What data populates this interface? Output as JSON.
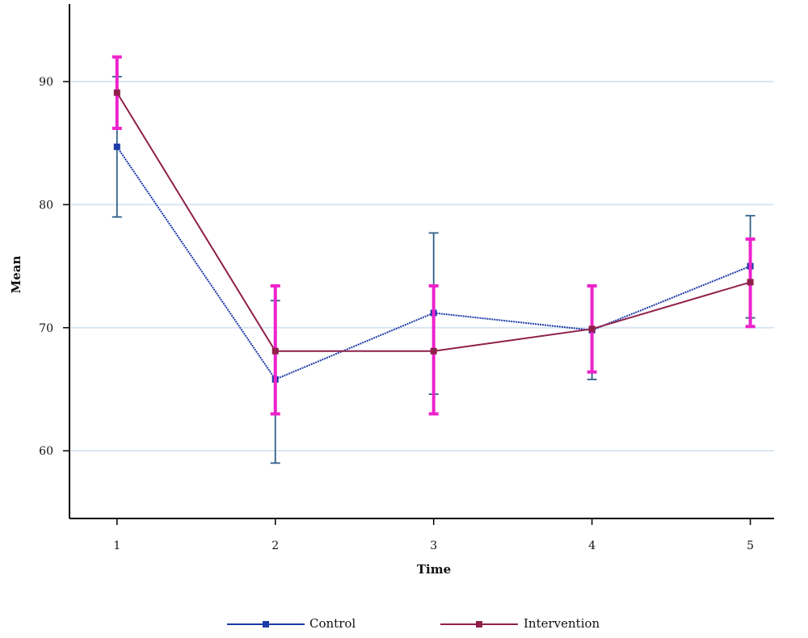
{
  "chart_data": {
    "type": "line",
    "title": "",
    "xlabel": "Time",
    "ylabel": "Mean",
    "x": [
      1,
      2,
      3,
      4,
      5
    ],
    "x_tick_labels": [
      "1",
      "2",
      "3",
      "4",
      "5"
    ],
    "y_ticks": [
      60,
      70,
      80,
      90
    ],
    "y_tick_labels": [
      "60",
      "70",
      "80",
      "90"
    ],
    "xlim": [
      0.7,
      5.15
    ],
    "ylim": [
      54.5,
      96.3
    ],
    "grid": "horizontal",
    "legend_position": "bottom",
    "series": [
      {
        "name": "Control",
        "color": "#1c3aa8",
        "errorbar_color": "#2f5f8a",
        "marker": "square",
        "values": [
          84.7,
          65.8,
          71.2,
          69.8,
          75.0
        ],
        "lower": [
          79.0,
          59.0,
          64.6,
          65.8,
          70.8
        ],
        "upper": [
          90.4,
          72.2,
          77.7,
          73.4,
          79.1
        ]
      },
      {
        "name": "Intervention",
        "color": "#8f1f4a",
        "errorbar_color": "#ee22cc",
        "marker": "square",
        "values": [
          89.1,
          68.1,
          68.1,
          69.9,
          73.7
        ],
        "lower": [
          86.2,
          63.0,
          63.0,
          66.4,
          70.1
        ],
        "upper": [
          92.0,
          73.4,
          73.4,
          73.4,
          77.2
        ]
      }
    ]
  }
}
